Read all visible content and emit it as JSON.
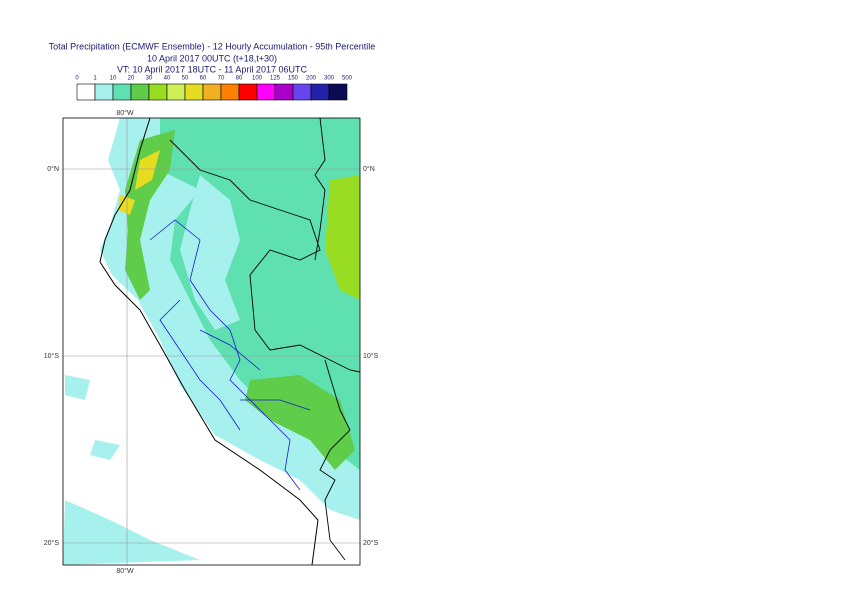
{
  "header": {
    "title": [
      "Total Precipitation (ECMWF Ensemble) - 12 Hourly Accumulation - 95th Percentile",
      "10 April 2017 00UTC (t+18,t+30)",
      "VT: 10 April 2017 18UTC - 11 April 2017 06UTC"
    ]
  },
  "legend": {
    "labels": [
      "0",
      "1",
      "10",
      "20",
      "30",
      "40",
      "50",
      "60",
      "70",
      "80",
      "100",
      "125",
      "150",
      "200",
      "300",
      "500"
    ],
    "colors": [
      "#ffffff",
      "#a6f0ee",
      "#5fe0b0",
      "#5fcc4a",
      "#99dd22",
      "#ccf055",
      "#e6dd22",
      "#f0b020",
      "#ff8000",
      "#ff0000",
      "#ff00ff",
      "#aa00cc",
      "#6644ee",
      "#2222aa",
      "#0a0a55"
    ]
  },
  "map": {
    "longitude_labels": [
      "80°W"
    ],
    "latitude_labels": [
      "0°N",
      "10°S",
      "20°S"
    ]
  }
}
